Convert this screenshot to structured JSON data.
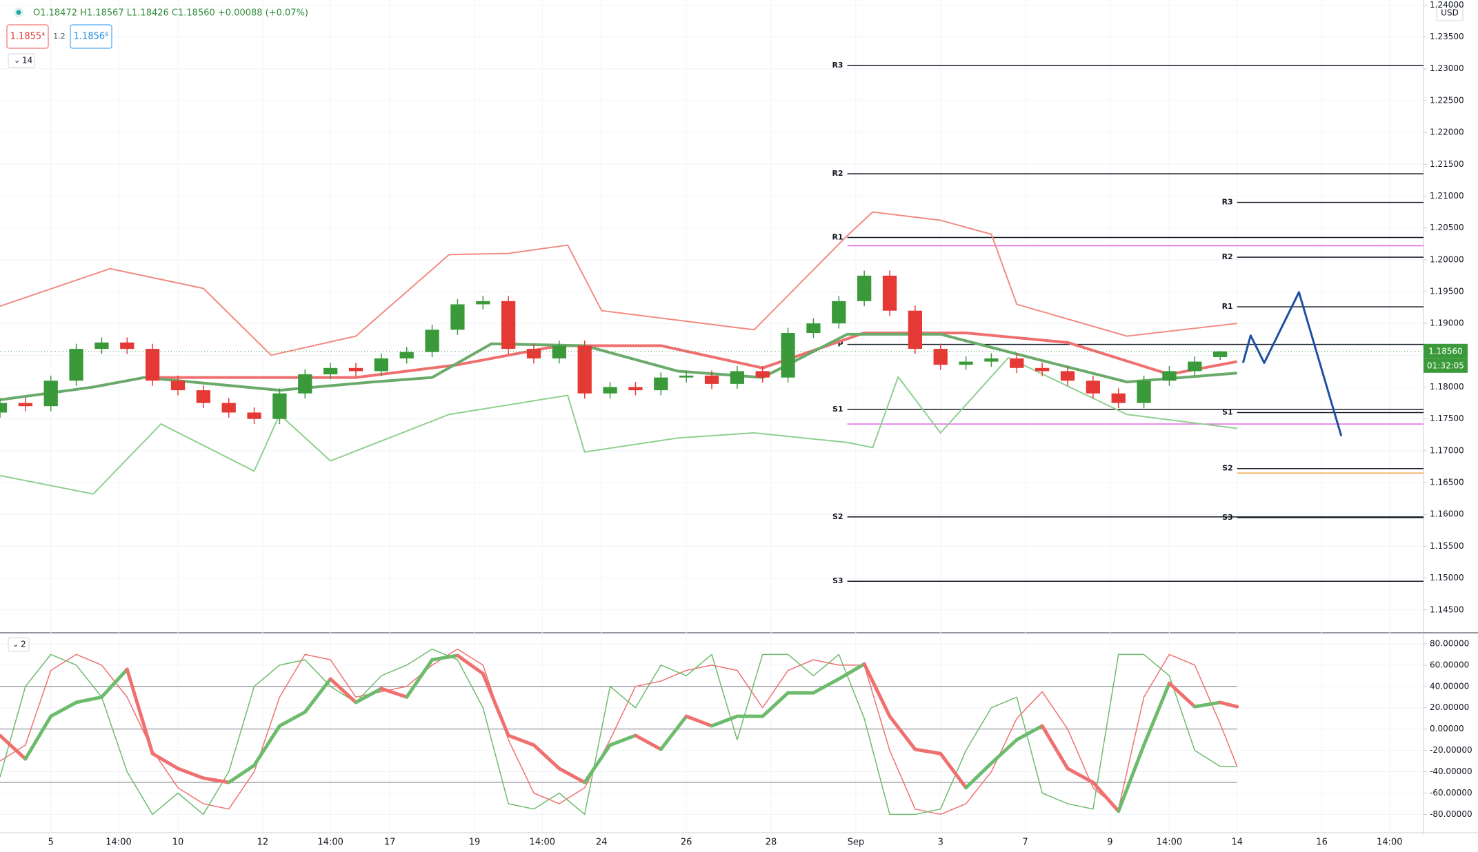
{
  "chart_data": [
    {
      "type": "candlestick",
      "ohlc_text": "O1.18472 H1.18567 L1.18426 C1.18560 +0.00088 (+0.07%)",
      "price_buttons": [
        "1.1855⁴",
        "1.2",
        "1.1856⁶"
      ],
      "indicator_label": "14",
      "currency": "USD",
      "last_price_label": "1.18560",
      "countdown": "01:32:05",
      "xlim": [
        0,
        168
      ],
      "ylim": [
        1.1414,
        1.2408
      ],
      "grid": true,
      "up_color": "#3a9a3a",
      "down_color": "#e53935",
      "xticks": [
        {
          "value": 6,
          "label": "5"
        },
        {
          "value": 14,
          "label": "14:00"
        },
        {
          "value": 21,
          "label": "10"
        },
        {
          "value": 31,
          "label": "12"
        },
        {
          "value": 39,
          "label": "14:00"
        },
        {
          "value": 46,
          "label": "17"
        },
        {
          "value": 56,
          "label": "19"
        },
        {
          "value": 64,
          "label": "14:00"
        },
        {
          "value": 71,
          "label": "24"
        },
        {
          "value": 81,
          "label": "26"
        },
        {
          "value": 91,
          "label": "28"
        },
        {
          "value": 101,
          "label": "Sep"
        },
        {
          "value": 111,
          "label": "3"
        },
        {
          "value": 121,
          "label": "7"
        },
        {
          "value": 131,
          "label": "9"
        },
        {
          "value": 138,
          "label": "14:00"
        },
        {
          "value": 146,
          "label": "14"
        },
        {
          "value": 156,
          "label": "16"
        },
        {
          "value": 164,
          "label": "14:00"
        }
      ],
      "yticks": [
        {
          "value": 1.145,
          "label": "1.14500"
        },
        {
          "value": 1.15,
          "label": "1.15000"
        },
        {
          "value": 1.155,
          "label": "1.15500"
        },
        {
          "value": 1.16,
          "label": "1.16000"
        },
        {
          "value": 1.165,
          "label": "1.16500"
        },
        {
          "value": 1.17,
          "label": "1.17000"
        },
        {
          "value": 1.175,
          "label": "1.17500"
        },
        {
          "value": 1.18,
          "label": "1.18000"
        },
        {
          "value": 1.185,
          "label": "1.18500"
        },
        {
          "value": 1.19,
          "label": "1.19000"
        },
        {
          "value": 1.195,
          "label": "1.19500"
        },
        {
          "value": 1.2,
          "label": "1.20000"
        },
        {
          "value": 1.205,
          "label": "1.20500"
        },
        {
          "value": 1.21,
          "label": "1.21000"
        },
        {
          "value": 1.215,
          "label": "1.21500"
        },
        {
          "value": 1.22,
          "label": "1.22000"
        },
        {
          "value": 1.225,
          "label": "1.22500"
        },
        {
          "value": 1.23,
          "label": "1.23000"
        },
        {
          "value": 1.235,
          "label": "1.23500"
        },
        {
          "value": 1.24,
          "label": "1.24000"
        }
      ],
      "x": [
        0,
        3,
        6,
        9,
        12,
        15,
        18,
        21,
        24,
        27,
        30,
        33,
        36,
        39,
        42,
        45,
        48,
        51,
        54,
        57,
        60,
        63,
        66,
        69,
        72,
        75,
        78,
        81,
        84,
        87,
        90,
        93,
        96,
        99,
        102,
        105,
        108,
        111,
        114,
        117,
        120,
        123,
        126,
        129,
        132,
        135,
        138,
        141,
        144
      ],
      "open": [
        1.176,
        1.1775,
        1.177,
        1.181,
        1.186,
        1.187,
        1.186,
        1.181,
        1.1795,
        1.1775,
        1.176,
        1.175,
        1.179,
        1.182,
        1.183,
        1.1825,
        1.1845,
        1.1855,
        1.189,
        1.193,
        1.1935,
        1.186,
        1.1845,
        1.1865,
        1.179,
        1.18,
        1.1795,
        1.1815,
        1.1818,
        1.1805,
        1.1825,
        1.1815,
        1.1885,
        1.19,
        1.1935,
        1.1975,
        1.192,
        1.186,
        1.1835,
        1.184,
        1.1845,
        1.183,
        1.1825,
        1.181,
        1.179,
        1.1775,
        1.181,
        1.1825,
        1.18472
      ],
      "high": [
        1.1783,
        1.1783,
        1.1818,
        1.1868,
        1.1878,
        1.1878,
        1.1868,
        1.1818,
        1.1803,
        1.1783,
        1.1768,
        1.1798,
        1.1828,
        1.1838,
        1.1838,
        1.1853,
        1.1863,
        1.1898,
        1.1938,
        1.1943,
        1.1943,
        1.1868,
        1.1873,
        1.1873,
        1.1808,
        1.1808,
        1.1823,
        1.1826,
        1.1826,
        1.1833,
        1.1833,
        1.1893,
        1.1908,
        1.1943,
        1.1983,
        1.1983,
        1.1928,
        1.1868,
        1.1848,
        1.1853,
        1.1853,
        1.1838,
        1.1833,
        1.1818,
        1.1798,
        1.1818,
        1.1833,
        1.1848,
        1.18567
      ],
      "low": [
        1.1752,
        1.1762,
        1.1762,
        1.1802,
        1.1852,
        1.1852,
        1.1802,
        1.1787,
        1.1767,
        1.1752,
        1.1742,
        1.1742,
        1.1782,
        1.1812,
        1.1817,
        1.1817,
        1.1837,
        1.1847,
        1.1882,
        1.1922,
        1.1852,
        1.1837,
        1.1837,
        1.1782,
        1.1782,
        1.1787,
        1.1787,
        1.1807,
        1.1797,
        1.1797,
        1.1807,
        1.1807,
        1.1877,
        1.1892,
        1.1927,
        1.1912,
        1.1852,
        1.1827,
        1.1827,
        1.1832,
        1.1822,
        1.1817,
        1.1802,
        1.1782,
        1.1767,
        1.1767,
        1.1802,
        1.1817,
        1.18426
      ],
      "close": [
        1.1775,
        1.177,
        1.181,
        1.186,
        1.187,
        1.186,
        1.181,
        1.1795,
        1.1775,
        1.176,
        1.175,
        1.179,
        1.182,
        1.183,
        1.1825,
        1.1845,
        1.1855,
        1.189,
        1.193,
        1.1935,
        1.186,
        1.1845,
        1.1865,
        1.179,
        1.18,
        1.1795,
        1.1815,
        1.1818,
        1.1805,
        1.1825,
        1.1815,
        1.1885,
        1.19,
        1.1935,
        1.1975,
        1.192,
        1.186,
        1.1835,
        1.184,
        1.1845,
        1.183,
        1.1825,
        1.181,
        1.179,
        1.1775,
        1.181,
        1.1825,
        1.184,
        1.1856
      ],
      "lines": [
        {
          "color": "#f28b82",
          "width": 2,
          "x": [
            0,
            13,
            24,
            32,
            42,
            53,
            60,
            67,
            71,
            80,
            89,
            100,
            103,
            111,
            117,
            120,
            133,
            146
          ],
          "values": [
            1.1927,
            1.1986,
            1.1955,
            1.185,
            1.188,
            1.2008,
            1.201,
            1.2023,
            1.192,
            1.1905,
            1.189,
            1.2038,
            1.2075,
            1.2062,
            1.204,
            1.193,
            1.188,
            1.19
          ]
        },
        {
          "color": "#8fcf8f",
          "width": 2,
          "x": [
            0,
            11,
            19,
            30,
            33,
            39,
            53,
            67,
            69,
            80,
            89,
            100,
            103,
            106,
            111,
            119,
            133,
            146
          ],
          "values": [
            1.1661,
            1.1632,
            1.1742,
            1.1668,
            1.1757,
            1.1684,
            1.1757,
            1.1787,
            1.1698,
            1.172,
            1.1728,
            1.1713,
            1.1705,
            1.1816,
            1.1728,
            1.1846,
            1.1757,
            1.1735
          ]
        },
        {
          "color": "#ef6f6f",
          "width": 4,
          "x": [
            18,
            30,
            42,
            54,
            66,
            78,
            90,
            102,
            114,
            126,
            138,
            146
          ],
          "values": [
            1.1815,
            1.1815,
            1.1815,
            1.1835,
            1.1865,
            1.1865,
            1.183,
            1.1885,
            1.1885,
            1.187,
            1.182,
            1.184
          ]
        },
        {
          "color": "#6aaa6a",
          "width": 4,
          "x": [
            0,
            11,
            17,
            33,
            44,
            51,
            58,
            69,
            80,
            90,
            100,
            111,
            122,
            133,
            146
          ],
          "values": [
            1.178,
            1.18,
            1.1815,
            1.1795,
            1.1808,
            1.1815,
            1.1868,
            1.1865,
            1.1825,
            1.1815,
            1.1883,
            1.1883,
            1.1845,
            1.1808,
            1.1822
          ]
        },
        {
          "color": "#1e4fa3",
          "width": 3,
          "x": [
            146.7,
            147.6,
            149.2,
            153.3,
            158.3
          ],
          "values": [
            1.1838,
            1.1881,
            1.1838,
            1.1949,
            1.1723
          ]
        }
      ],
      "pivots": [
        {
          "label": "R3",
          "value": 1.2305,
          "x": [
            100,
            168
          ]
        },
        {
          "label": "R2",
          "value": 1.2135,
          "x": [
            100,
            168
          ]
        },
        {
          "label": "R1",
          "value": 1.2035,
          "x": [
            100,
            168
          ]
        },
        {
          "label": "P",
          "value": 1.1867,
          "x": [
            100,
            168
          ]
        },
        {
          "label": "S1",
          "value": 1.1765,
          "x": [
            100,
            168
          ]
        },
        {
          "label": "S2",
          "value": 1.1596,
          "x": [
            100,
            168
          ]
        },
        {
          "label": "S3",
          "value": 1.1495,
          "x": [
            100,
            168
          ]
        },
        {
          "label": "R3",
          "value": 1.209,
          "x": [
            146,
            168
          ]
        },
        {
          "label": "R2",
          "value": 1.2004,
          "x": [
            146,
            168
          ]
        },
        {
          "label": "R1",
          "value": 1.1926,
          "x": [
            146,
            168
          ]
        },
        {
          "label": "S1",
          "value": 1.176,
          "x": [
            146,
            168
          ]
        },
        {
          "label": "S2",
          "value": 1.1672,
          "x": [
            146,
            168
          ]
        },
        {
          "label": "S3",
          "value": 1.1595,
          "x": [
            146,
            168
          ]
        }
      ],
      "hlines": [
        {
          "value": 1.2022,
          "color": "#e066e0",
          "x": [
            100,
            168
          ]
        },
        {
          "value": 1.1742,
          "color": "#e066e0",
          "x": [
            100,
            168
          ]
        },
        {
          "value": 1.1665,
          "color": "#f0a040",
          "x": [
            146,
            168
          ]
        }
      ]
    },
    {
      "type": "line",
      "indicator_label": "2",
      "ylim": [
        -92,
        89
      ],
      "yticks": [
        {
          "value": -80,
          "label": "-80.00000"
        },
        {
          "value": -60,
          "label": "-60.00000"
        },
        {
          "value": -40,
          "label": "-40.00000"
        },
        {
          "value": -20,
          "label": "-20.00000"
        },
        {
          "value": 0,
          "label": "0.00000"
        },
        {
          "value": 20,
          "label": "20.00000"
        },
        {
          "value": 40,
          "label": "40.00000"
        },
        {
          "value": 60,
          "label": "60.00000"
        },
        {
          "value": 80,
          "label": "80.00000"
        }
      ],
      "levels": [
        40,
        0,
        -50
      ],
      "x": [
        0,
        3,
        6,
        9,
        12,
        15,
        18,
        21,
        24,
        27,
        30,
        33,
        36,
        39,
        42,
        45,
        48,
        51,
        54,
        57,
        60,
        63,
        66,
        69,
        72,
        75,
        78,
        81,
        84,
        87,
        90,
        93,
        96,
        99,
        102,
        105,
        108,
        111,
        114,
        117,
        120,
        123,
        126,
        129,
        132,
        135,
        138,
        141,
        144,
        146
      ],
      "series": [
        {
          "color": "#f07070",
          "width": 1.5,
          "values": [
            -30,
            -15,
            55,
            70,
            60,
            30,
            -20,
            -55,
            -70,
            -75,
            -40,
            30,
            70,
            65,
            30,
            35,
            40,
            60,
            75,
            60,
            -10,
            -60,
            -70,
            -55,
            -10,
            40,
            45,
            55,
            60,
            55,
            20,
            55,
            65,
            60,
            60,
            -20,
            -75,
            -80,
            -70,
            -40,
            10,
            35,
            0,
            -55,
            -75,
            30,
            70,
            60,
            5,
            -35
          ]
        },
        {
          "color": "#6dbb6d",
          "width": 1.5,
          "values": [
            -45,
            40,
            70,
            60,
            30,
            -40,
            -80,
            -60,
            -80,
            -40,
            40,
            60,
            65,
            40,
            25,
            50,
            60,
            75,
            65,
            20,
            -70,
            -75,
            -60,
            -80,
            40,
            20,
            60,
            50,
            70,
            -10,
            70,
            70,
            50,
            70,
            10,
            -80,
            -80,
            -75,
            -20,
            20,
            30,
            -60,
            -70,
            -75,
            70,
            70,
            50,
            -20,
            -35,
            -35
          ]
        },
        {
          "color": "#6dbb6d",
          "down_color": "#f07070",
          "width": 5,
          "values": [
            -6,
            -28,
            12,
            25,
            30,
            56,
            -23,
            -37,
            -46,
            -50,
            -34,
            3,
            16,
            47,
            25,
            38,
            30,
            65,
            69,
            52,
            -6,
            -15,
            -37,
            -50,
            -15,
            -6,
            -19,
            12,
            3,
            12,
            12,
            34,
            34,
            47,
            61,
            12,
            -19,
            -23,
            -55,
            -32,
            -10,
            3,
            -37,
            -50,
            -77,
            -15,
            43,
            21,
            25,
            21
          ]
        }
      ]
    }
  ]
}
